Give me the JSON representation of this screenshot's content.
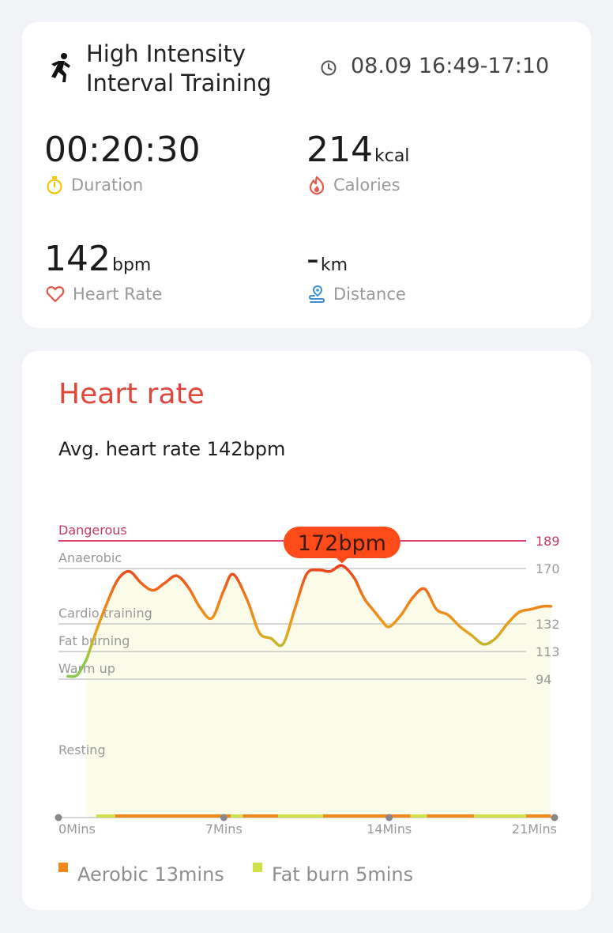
{
  "workout": {
    "title_line1": "High Intensity",
    "title_line2": "Interval Training",
    "time_range": "08.09 16:49-17:10",
    "activity_icon": "running-person-icon"
  },
  "stats": {
    "duration": {
      "value": "00:20:30",
      "unit": "",
      "label": "Duration",
      "icon": "stopwatch-icon",
      "icon_color": "#f2c500"
    },
    "calories": {
      "value": "214",
      "unit": "kcal",
      "label": "Calories",
      "icon": "flame-icon",
      "icon_color": "#e65a4a"
    },
    "heart_rate": {
      "value": "142",
      "unit": "bpm",
      "label": "Heart Rate",
      "icon": "heart-icon",
      "icon_color": "#e8524a"
    },
    "distance": {
      "value": "-",
      "unit": "km",
      "label": "Distance",
      "icon": "route-pin-icon",
      "icon_color": "#3d8fd6"
    }
  },
  "heart_rate_card": {
    "title": "Heart rate",
    "title_color": "#e0473c",
    "avg_text": "Avg. heart rate 142bpm",
    "peak_label": "172bpm",
    "peak_color": "#ff4a1a"
  },
  "legend": {
    "aerobic": {
      "label": "Aerobic 13mins",
      "color": "#f08a1c"
    },
    "fat_burn": {
      "label": "Fat burn 5mins",
      "color": "#cfe04a"
    }
  },
  "chart_data": {
    "type": "line",
    "x_unit": "Mins",
    "x_ticks": [
      {
        "value": 0,
        "label": "0Mins"
      },
      {
        "value": 7,
        "label": "7Mins"
      },
      {
        "value": 14,
        "label": "14Mins"
      },
      {
        "value": 21,
        "label": "21Mins"
      }
    ],
    "xlim": [
      0,
      21
    ],
    "ylim": [
      0,
      189
    ],
    "zones": [
      {
        "name": "Dangerous",
        "threshold": 189,
        "color": "#d8456e"
      },
      {
        "name": "Anaerobic",
        "threshold": 170,
        "color": "#c9c9c9"
      },
      {
        "name": "Cardio training",
        "threshold": 132,
        "color": "#c9c9c9"
      },
      {
        "name": "Fat burning",
        "threshold": 113,
        "color": "#c9c9c9"
      },
      {
        "name": "Warm up",
        "threshold": 94,
        "color": "#c9c9c9"
      },
      {
        "name": "Resting",
        "threshold": null,
        "color": null
      }
    ],
    "series": [
      {
        "x": [
          0.4,
          0.8,
          1.2,
          1.6,
          2.0,
          2.5,
          3.0,
          3.5,
          4.0,
          4.5,
          5.0,
          5.5,
          6.0,
          6.5,
          7.0,
          7.4,
          8.0,
          8.5,
          9.0,
          9.5,
          10.0,
          10.5,
          11.0,
          11.5,
          12.0,
          12.5,
          12.8,
          13.0,
          13.3,
          13.7,
          14.0,
          14.5,
          15.0,
          15.5,
          16.0,
          16.5,
          17.0,
          17.5,
          18.0,
          18.5,
          19.0,
          19.5,
          20.0,
          20.5,
          20.85
        ],
        "y": [
          96,
          97,
          108,
          127,
          144,
          162,
          168,
          160,
          155,
          160,
          165,
          157,
          143,
          136,
          155,
          166,
          148,
          126,
          122,
          118,
          142,
          166,
          169,
          168,
          172,
          164,
          154,
          148,
          142,
          134,
          130,
          138,
          150,
          156,
          142,
          138,
          130,
          124,
          118,
          122,
          132,
          140,
          142,
          144,
          144
        ]
      }
    ],
    "zone_bar": [
      {
        "from": 1.6,
        "to": 2.4,
        "color": "#cfe04a"
      },
      {
        "from": 2.4,
        "to": 7.3,
        "color": "#f08a1c"
      },
      {
        "from": 7.3,
        "to": 7.8,
        "color": "#cfe04a"
      },
      {
        "from": 7.8,
        "to": 9.3,
        "color": "#f08a1c"
      },
      {
        "from": 9.3,
        "to": 11.2,
        "color": "#cfe04a"
      },
      {
        "from": 11.2,
        "to": 14.9,
        "color": "#f08a1c"
      },
      {
        "from": 14.9,
        "to": 15.6,
        "color": "#cfe04a"
      },
      {
        "from": 15.6,
        "to": 17.6,
        "color": "#f08a1c"
      },
      {
        "from": 17.6,
        "to": 19.8,
        "color": "#cfe04a"
      },
      {
        "from": 19.8,
        "to": 20.85,
        "color": "#f08a1c"
      }
    ]
  }
}
